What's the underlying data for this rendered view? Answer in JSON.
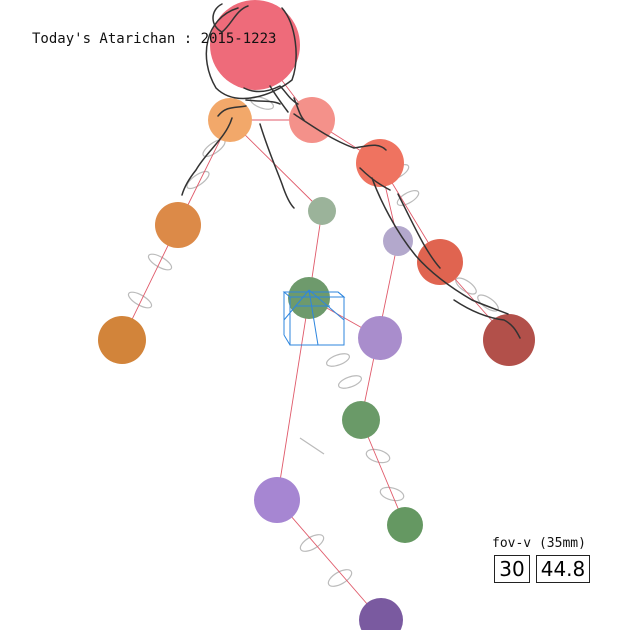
{
  "title": "Today's Atarichan : 2015-1223",
  "fov": {
    "label": "fov-v (35mm)",
    "degrees": "30",
    "value": "44.8"
  },
  "colors": {
    "head": "#ee6b7a",
    "bone": "#e05a6a",
    "ring": "#bbbbbb",
    "stroke": "#333333",
    "selection_box": "#2e86de"
  },
  "joints": [
    {
      "name": "head",
      "color": "#ee6b7a"
    },
    {
      "name": "shoulder-left",
      "color": "#f2a86a"
    },
    {
      "name": "elbow-left",
      "color": "#dc8a48"
    },
    {
      "name": "hand-left",
      "color": "#d2843a"
    },
    {
      "name": "shoulder-right",
      "color": "#f4918a"
    },
    {
      "name": "elbow-right",
      "color": "#ef7360"
    },
    {
      "name": "wrist-right",
      "color": "#e06450"
    },
    {
      "name": "hand-right",
      "color": "#b2504a"
    },
    {
      "name": "chest",
      "color": "#9bb39a"
    },
    {
      "name": "hips",
      "color": "#6e9a6c"
    },
    {
      "name": "hip-right",
      "color": "#b3a8cc"
    },
    {
      "name": "knee-right",
      "color": "#a98dcc"
    },
    {
      "name": "ankle-right",
      "color": "#6a9a68"
    },
    {
      "name": "foot-right",
      "color": "#659862"
    },
    {
      "name": "knee-left",
      "color": "#a686d2"
    },
    {
      "name": "foot-left",
      "color": "#7a5aa0"
    }
  ]
}
